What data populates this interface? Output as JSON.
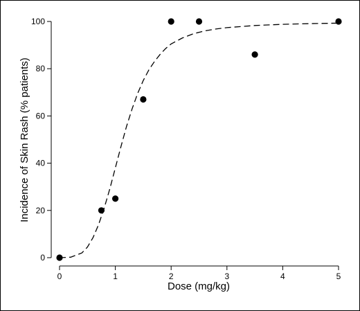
{
  "chart_data": {
    "type": "scatter",
    "xlabel": "Dose (mg/kg)",
    "ylabel": "Incidence of Skin Rash (% patients)",
    "xlim": [
      0,
      5
    ],
    "ylim": [
      0,
      100
    ],
    "x_ticks": [
      0,
      1,
      2,
      3,
      4,
      5
    ],
    "y_ticks": [
      0,
      20,
      40,
      60,
      80,
      100
    ],
    "grid": false,
    "points": {
      "x": [
        0,
        0.75,
        1.0,
        1.5,
        2.0,
        2.5,
        3.5,
        5.0
      ],
      "y": [
        0,
        20,
        25,
        67,
        100,
        100,
        86,
        100
      ]
    },
    "fit_curve": {
      "style": "dashed",
      "x": [
        0,
        0.2,
        0.4,
        0.5,
        0.6,
        0.7,
        0.8,
        0.9,
        1.0,
        1.1,
        1.2,
        1.3,
        1.4,
        1.5,
        1.6,
        1.7,
        1.8,
        1.9,
        2.0,
        2.2,
        2.4,
        2.6,
        2.8,
        3.0,
        3.5,
        4.0,
        4.5,
        5.0
      ],
      "y": [
        0,
        0.2,
        2.0,
        4.5,
        8.5,
        14,
        21,
        29,
        38,
        47,
        55.5,
        63,
        69.5,
        75,
        79.5,
        83,
        86,
        88.5,
        90.5,
        93,
        94.8,
        96,
        96.8,
        97.4,
        98.3,
        98.8,
        99.1,
        99.3
      ]
    },
    "colors": {
      "marker": "#000000",
      "curve": "#000000"
    }
  }
}
